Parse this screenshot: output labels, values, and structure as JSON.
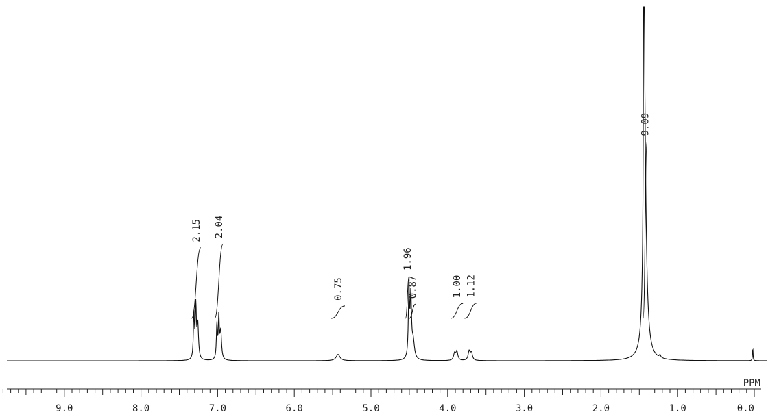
{
  "chart_data": {
    "type": "line",
    "title": "",
    "xlabel": "PPM",
    "ylabel": "",
    "xlim": [
      9.75,
      0.0
    ],
    "x_ticks": [
      {
        "value": 9.0,
        "label": "9.0"
      },
      {
        "value": 8.0,
        "label": "8.0"
      },
      {
        "value": 7.0,
        "label": "7.0"
      },
      {
        "value": 6.0,
        "label": "6.0"
      },
      {
        "value": 5.0,
        "label": "5.0"
      },
      {
        "value": 4.0,
        "label": "4.0"
      },
      {
        "value": 3.0,
        "label": "3.0"
      },
      {
        "value": 2.0,
        "label": "2.0"
      },
      {
        "value": 1.0,
        "label": "1.0"
      },
      {
        "value": 0.0,
        "label": "0.0"
      }
    ],
    "minor_tick_step": 0.1,
    "peaks": [
      {
        "ppm": 7.31,
        "height": 0.13,
        "width": 0.008
      },
      {
        "ppm": 7.285,
        "height": 0.145,
        "width": 0.008
      },
      {
        "ppm": 7.26,
        "height": 0.1,
        "width": 0.012
      },
      {
        "ppm": 7.01,
        "height": 0.1,
        "width": 0.008
      },
      {
        "ppm": 6.985,
        "height": 0.115,
        "width": 0.008
      },
      {
        "ppm": 6.96,
        "height": 0.08,
        "width": 0.012
      },
      {
        "ppm": 5.43,
        "height": 0.018,
        "width": 0.03
      },
      {
        "ppm": 4.505,
        "height": 0.2,
        "width": 0.009
      },
      {
        "ppm": 4.48,
        "height": 0.17,
        "width": 0.01
      },
      {
        "ppm": 4.45,
        "height": 0.05,
        "width": 0.02
      },
      {
        "ppm": 3.91,
        "height": 0.02,
        "width": 0.015
      },
      {
        "ppm": 3.88,
        "height": 0.025,
        "width": 0.015
      },
      {
        "ppm": 3.72,
        "height": 0.026,
        "width": 0.015
      },
      {
        "ppm": 3.69,
        "height": 0.022,
        "width": 0.015
      },
      {
        "ppm": 1.44,
        "height": 1.0,
        "width": 0.006
      },
      {
        "ppm": 1.43,
        "height": 0.48,
        "width": 0.02
      },
      {
        "ppm": 1.42,
        "height": 0.12,
        "width": 0.04
      },
      {
        "ppm": 1.23,
        "height": 0.008,
        "width": 0.01
      },
      {
        "ppm": 0.02,
        "height": 0.04,
        "width": 0.004
      }
    ],
    "integrations": [
      {
        "label": "2.15",
        "from": 7.34,
        "to": 7.22,
        "rise": 0.2
      },
      {
        "label": "2.04",
        "from": 7.04,
        "to": 6.93,
        "rise": 0.21
      },
      {
        "label": "0.75",
        "from": 5.52,
        "to": 5.34,
        "rise": 0.035
      },
      {
        "label": "1.96",
        "from": 4.55,
        "to": 4.5,
        "rise": 0.12
      },
      {
        "label": "0.87",
        "from": 4.5,
        "to": 4.42,
        "rise": 0.04
      },
      {
        "label": "1.00",
        "from": 3.96,
        "to": 3.8,
        "rise": 0.042
      },
      {
        "label": "1.12",
        "from": 3.78,
        "to": 3.62,
        "rise": 0.043
      },
      {
        "label": "9.09",
        "from": 1.45,
        "to": 1.4,
        "rise": 0.5
      }
    ]
  }
}
